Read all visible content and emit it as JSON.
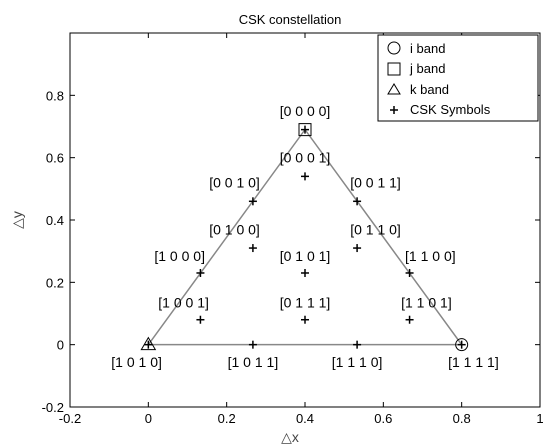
{
  "chart_data": {
    "type": "scatter",
    "title": "CSK constellation",
    "xlabel": "△x",
    "ylabel": "△y",
    "xlim": [
      -0.2,
      1.0
    ],
    "ylim": [
      -0.2,
      1.0
    ],
    "xticks": [
      -0.2,
      0,
      0.2,
      0.4,
      0.6,
      0.8,
      1
    ],
    "xtick_labels": [
      "-0.2",
      "0",
      "0.2",
      "0.4",
      "0.6",
      "0.8",
      "1"
    ],
    "yticks": [
      -0.2,
      0,
      0.2,
      0.4,
      0.6,
      0.8
    ],
    "ytick_labels": [
      "-0.2",
      "0",
      "0.2",
      "0.4",
      "0.6",
      "0.8"
    ],
    "grid": false,
    "legend_position": "top-right",
    "triangle": [
      [
        0.0,
        0.0
      ],
      [
        0.4,
        0.69
      ],
      [
        0.8,
        0.0
      ]
    ],
    "bands": [
      {
        "name": "i band",
        "marker": "circle",
        "x": 0.8,
        "y": 0.0
      },
      {
        "name": "j band",
        "marker": "square",
        "x": 0.4,
        "y": 0.69
      },
      {
        "name": "k band",
        "marker": "triangle",
        "x": 0.0,
        "y": 0.0
      }
    ],
    "symbols_series_name": "CSK Symbols",
    "symbols": [
      {
        "label": "[0 0 0 0]",
        "x": 0.4,
        "y": 0.69,
        "lx": 0.4,
        "ly": 0.75
      },
      {
        "label": "[0 0 0 1]",
        "x": 0.4,
        "y": 0.54,
        "lx": 0.4,
        "ly": 0.6
      },
      {
        "label": "[0 0 1 0]",
        "x": 0.267,
        "y": 0.46,
        "lx": 0.22,
        "ly": 0.52
      },
      {
        "label": "[0 0 1 1]",
        "x": 0.533,
        "y": 0.46,
        "lx": 0.58,
        "ly": 0.52
      },
      {
        "label": "[0 1 0 0]",
        "x": 0.267,
        "y": 0.31,
        "lx": 0.22,
        "ly": 0.37
      },
      {
        "label": "[0 1 1 0]",
        "x": 0.533,
        "y": 0.31,
        "lx": 0.58,
        "ly": 0.37
      },
      {
        "label": "[1 0 0 0]",
        "x": 0.133,
        "y": 0.23,
        "lx": 0.08,
        "ly": 0.285
      },
      {
        "label": "[0 1 0 1]",
        "x": 0.4,
        "y": 0.23,
        "lx": 0.4,
        "ly": 0.285
      },
      {
        "label": "[1 1 0 0]",
        "x": 0.667,
        "y": 0.23,
        "lx": 0.72,
        "ly": 0.285
      },
      {
        "label": "[1 0 0 1]",
        "x": 0.133,
        "y": 0.08,
        "lx": 0.09,
        "ly": 0.135
      },
      {
        "label": "[0 1 1 1]",
        "x": 0.4,
        "y": 0.08,
        "lx": 0.4,
        "ly": 0.135
      },
      {
        "label": "[1 1 0 1]",
        "x": 0.667,
        "y": 0.08,
        "lx": 0.71,
        "ly": 0.135
      },
      {
        "label": "[1 0 1 0]",
        "x": 0.0,
        "y": 0.0,
        "lx": -0.03,
        "ly": -0.055
      },
      {
        "label": "[1 0 1 1]",
        "x": 0.267,
        "y": 0.0,
        "lx": 0.267,
        "ly": -0.055
      },
      {
        "label": "[1 1 1 0]",
        "x": 0.533,
        "y": 0.0,
        "lx": 0.533,
        "ly": -0.055
      },
      {
        "label": "[1 1 1 1]",
        "x": 0.8,
        "y": 0.0,
        "lx": 0.83,
        "ly": -0.055
      }
    ]
  }
}
